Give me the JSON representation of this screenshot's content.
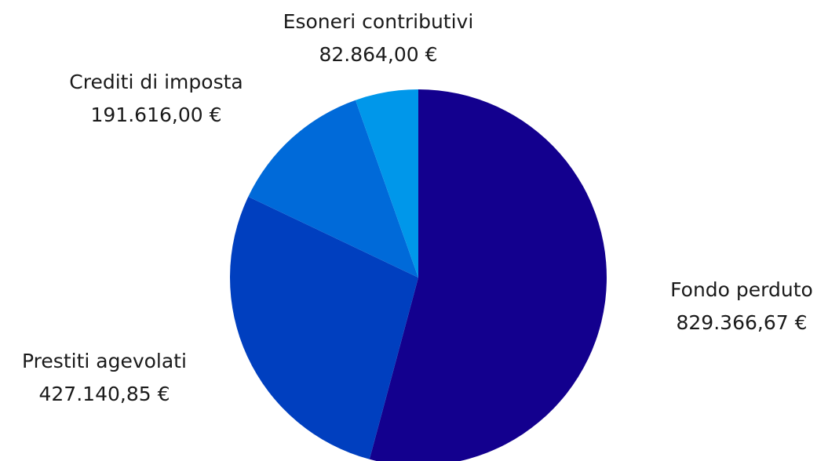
{
  "chart_data": {
    "type": "pie",
    "title": "",
    "categories": [
      "Fondo perduto",
      "Prestiti agevolati",
      "Crediti di imposta",
      "Esoneri contributivi"
    ],
    "values": [
      829366.67,
      427140.85,
      191616.0,
      82864.0
    ],
    "value_labels": [
      "829.366,67 €",
      "427.140,85 €",
      "191.616,00 €",
      "82.864,00 €"
    ],
    "colors": [
      "#13008e",
      "#003fbf",
      "#006ad9",
      "#0097ea"
    ],
    "start_angle_deg": 0,
    "direction": "clockwise",
    "legend": "none",
    "labels_outside": true
  }
}
